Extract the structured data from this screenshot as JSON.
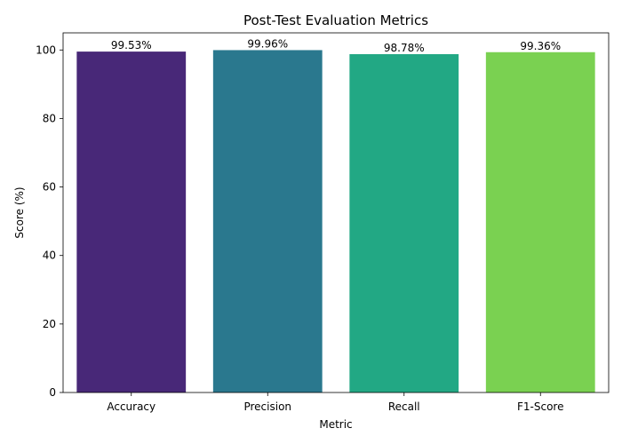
{
  "chart_data": {
    "type": "bar",
    "title": "Post-Test Evaluation Metrics",
    "xlabel": "Metric",
    "ylabel": "Score (%)",
    "categories": [
      "Accuracy",
      "Precision",
      "Recall",
      "F1-Score"
    ],
    "values": [
      99.53,
      99.96,
      98.78,
      99.36
    ],
    "value_labels": [
      "99.53%",
      "99.96%",
      "98.78%",
      "99.36%"
    ],
    "colors": [
      "#482878",
      "#2a788e",
      "#22a884",
      "#7ad151"
    ],
    "ylim": [
      0,
      105
    ],
    "yticks": [
      0,
      20,
      40,
      60,
      80,
      100
    ],
    "grid": false,
    "legend": "none"
  }
}
